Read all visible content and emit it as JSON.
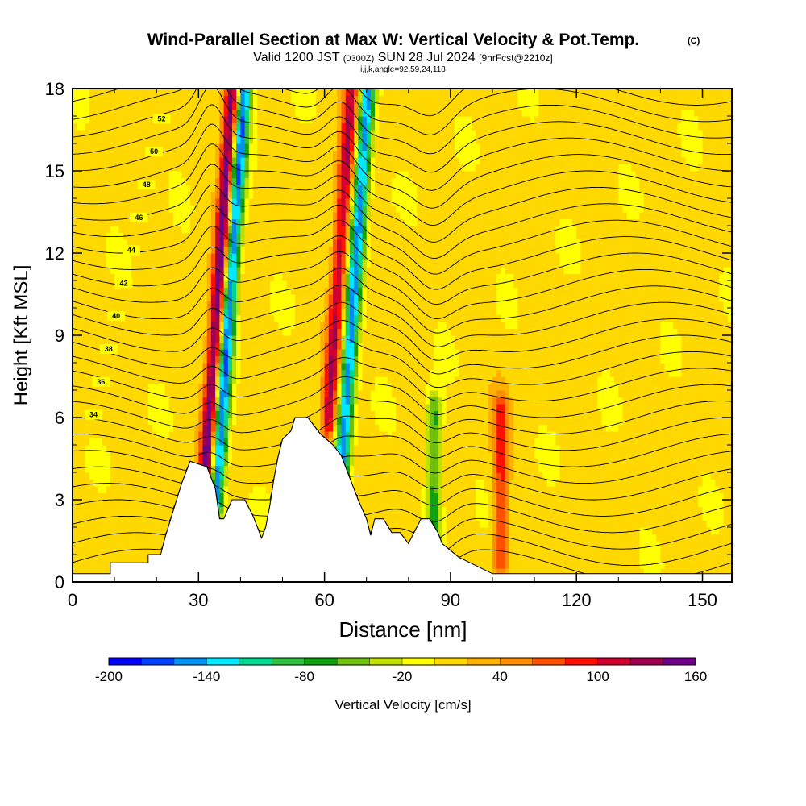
{
  "chart_data": {
    "type": "heatmap",
    "title": "Wind-Parallel Section at Max W: Vertical Velocity & Pot.Temp.",
    "title_mark": "(C)",
    "subtitle": {
      "valid_prefix": "Valid 1200 JST",
      "utc": "(0300Z)",
      "date": "SUN 28 Jul 2024",
      "forecast": "[9hrFcst@2210z]"
    },
    "index_line": "i,j,k,angle=92,59,24,118",
    "xlabel": "Distance [nm]",
    "ylabel": "Height [Kft MSL]",
    "xlim": [
      0,
      157
    ],
    "ylim": [
      0,
      18
    ],
    "xticks": [
      "0",
      "30",
      "60",
      "90",
      "120",
      "150"
    ],
    "yticks": [
      "0",
      "3",
      "6",
      "9",
      "12",
      "15",
      "18"
    ],
    "colorbar": {
      "label": "Vertical Velocity [cm/s]",
      "ticks": [
        "-200",
        "-140",
        "-80",
        "-20",
        "40",
        "100",
        "160"
      ],
      "levels": [
        -200,
        -180,
        -160,
        -140,
        -120,
        -100,
        -80,
        -60,
        -40,
        -20,
        0,
        20,
        40,
        60,
        80,
        100,
        120,
        140,
        160
      ],
      "colors": [
        "#0000ff",
        "#0040ff",
        "#0090f0",
        "#00e8ff",
        "#00d890",
        "#30c040",
        "#10a010",
        "#70c010",
        "#c0e000",
        "#ffff00",
        "#ffd800",
        "#ffb000",
        "#ff8c00",
        "#ff5000",
        "#ff1000",
        "#d00030",
        "#a00050",
        "#70008a"
      ]
    },
    "theta_contour_labels": [
      "34",
      "36",
      "38",
      "40",
      "42",
      "44",
      "46",
      "48",
      "50",
      "52"
    ],
    "w_features": [
      {
        "x": 31,
        "z_lo": 2,
        "z_hi": 18,
        "w": 160
      },
      {
        "x": 34,
        "z_lo": 3,
        "z_hi": 18,
        "w": -180
      },
      {
        "x": 61,
        "z_lo": 6,
        "z_hi": 18,
        "w": 110
      },
      {
        "x": 64,
        "z_lo": 4,
        "z_hi": 18,
        "w": -160
      },
      {
        "x": 86,
        "z_lo": 1,
        "z_hi": 6,
        "w": -80
      },
      {
        "x": 102,
        "z_lo": 1,
        "z_hi": 6,
        "w": 80
      }
    ],
    "terrain": [
      [
        0,
        0.3
      ],
      [
        9,
        0.3
      ],
      [
        9,
        0.7
      ],
      [
        18,
        0.7
      ],
      [
        18,
        1.0
      ],
      [
        21,
        1.0
      ],
      [
        22,
        1.6
      ],
      [
        24,
        2.6
      ],
      [
        26,
        3.6
      ],
      [
        28,
        4.4
      ],
      [
        30,
        4.3
      ],
      [
        32,
        4.2
      ],
      [
        34,
        3.4
      ],
      [
        35,
        2.3
      ],
      [
        36,
        2.3
      ],
      [
        38,
        3.0
      ],
      [
        41,
        3.0
      ],
      [
        43,
        2.4
      ],
      [
        45,
        1.6
      ],
      [
        46,
        2.0
      ],
      [
        47,
        2.8
      ],
      [
        48,
        3.8
      ],
      [
        49,
        4.6
      ],
      [
        50,
        5.2
      ],
      [
        52,
        5.5
      ],
      [
        53,
        6.0
      ],
      [
        56,
        6.0
      ],
      [
        57,
        5.8
      ],
      [
        59,
        5.4
      ],
      [
        62,
        5.0
      ],
      [
        64,
        4.6
      ],
      [
        66,
        3.8
      ],
      [
        68,
        3.0
      ],
      [
        70,
        2.3
      ],
      [
        71,
        1.7
      ],
      [
        72,
        2.3
      ],
      [
        74,
        2.3
      ],
      [
        76,
        1.8
      ],
      [
        78,
        1.8
      ],
      [
        80,
        1.4
      ],
      [
        81,
        1.7
      ],
      [
        83,
        2.3
      ],
      [
        85,
        2.3
      ],
      [
        87,
        1.8
      ],
      [
        88,
        1.4
      ],
      [
        92,
        0.9
      ],
      [
        96,
        0.6
      ],
      [
        100,
        0.3
      ],
      [
        157,
        0.3
      ]
    ]
  }
}
